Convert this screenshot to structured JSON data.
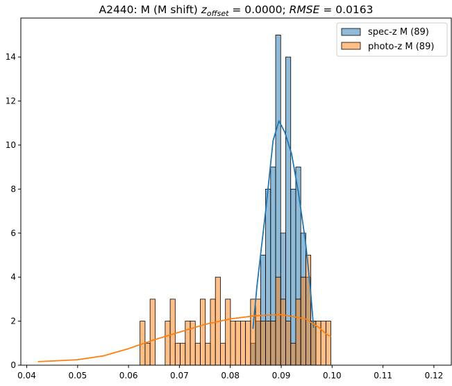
{
  "chart_data": {
    "type": "histogram",
    "title": {
      "prefix": "A2440: M (M shift) ",
      "z_sym": "z",
      "z_sub": "offset",
      "mid": " = 0.0000; ",
      "rmse_sym": "RMSE",
      "suffix": " = 0.0163"
    },
    "xlabel": "",
    "ylabel": "",
    "xlim": [
      0.03884,
      0.12342
    ],
    "ylim": [
      0,
      15.77
    ],
    "xticks": [
      0.04,
      0.05,
      0.06,
      0.07,
      0.08,
      0.09,
      0.1,
      0.11,
      0.12
    ],
    "xtick_labels": [
      "0.04",
      "0.05",
      "0.06",
      "0.07",
      "0.08",
      "0.09",
      "0.10",
      "0.11",
      "0.12"
    ],
    "yticks": [
      0,
      2,
      4,
      6,
      8,
      10,
      12,
      14
    ],
    "ytick_labels": [
      "0",
      "2",
      "4",
      "6",
      "8",
      "10",
      "12",
      "14"
    ],
    "grid": false,
    "legend_position": "top-right",
    "bin_start": 0.06226,
    "bin_width": 0.000987,
    "series": [
      {
        "name": "spec-z M (89)",
        "color": "#1f77b4",
        "first_bin": 22,
        "counts": [
          1,
          2,
          5,
          8,
          9,
          15,
          6,
          14,
          8,
          9,
          6,
          4,
          2
        ],
        "kde": [
          [
            0.08445,
            1.65
          ],
          [
            0.08523,
            3.6
          ],
          [
            0.08704,
            7.2
          ],
          [
            0.0884,
            10.2
          ],
          [
            0.08955,
            11.1
          ],
          [
            0.09068,
            10.6
          ],
          [
            0.09205,
            9.6
          ],
          [
            0.09341,
            7.8
          ],
          [
            0.09477,
            5.6
          ],
          [
            0.09569,
            3.6
          ],
          [
            0.09637,
            1.7
          ]
        ]
      },
      {
        "name": "photo-z M (89)",
        "color": "#ff7f0e",
        "first_bin": 0,
        "counts": [
          2,
          1,
          3,
          0,
          0,
          2,
          3,
          1,
          1,
          2,
          2,
          1,
          3,
          1,
          3,
          4,
          1,
          3,
          2,
          2,
          2,
          2,
          3,
          3,
          2,
          2,
          2,
          4,
          3,
          2,
          1,
          3,
          4,
          5,
          2,
          2,
          2,
          2
        ],
        "kde": [
          [
            0.0422,
            0.16
          ],
          [
            0.045,
            0.19
          ],
          [
            0.05,
            0.25
          ],
          [
            0.055,
            0.42
          ],
          [
            0.06,
            0.75
          ],
          [
            0.065,
            1.15
          ],
          [
            0.07,
            1.5
          ],
          [
            0.075,
            1.85
          ],
          [
            0.08,
            2.1
          ],
          [
            0.085,
            2.25
          ],
          [
            0.09,
            2.3
          ],
          [
            0.0948,
            2.1
          ],
          [
            0.0975,
            1.7
          ],
          [
            0.0989,
            1.4
          ],
          [
            0.0998,
            1.3
          ]
        ]
      }
    ]
  }
}
